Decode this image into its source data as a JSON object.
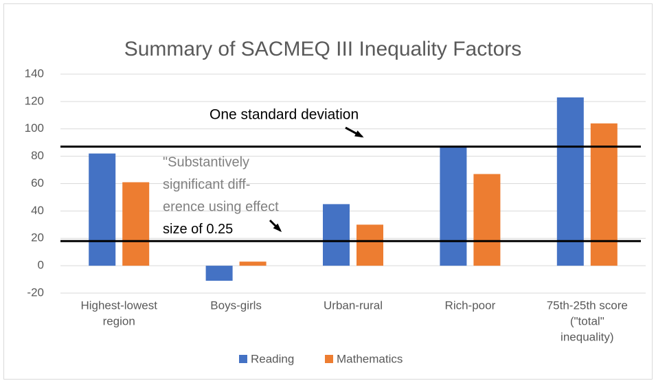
{
  "chart_data": {
    "type": "bar",
    "title": "Summary of SACMEQ III Inequality Factors",
    "categories": [
      [
        "Highest-lowest",
        "region"
      ],
      [
        "Boys-girls"
      ],
      [
        "Urban-rural"
      ],
      [
        "Rich-poor"
      ],
      [
        "75th-25th score",
        "(\"total\"",
        "inequality)"
      ]
    ],
    "series": [
      {
        "name": "Reading",
        "color": "#4472c4",
        "values": [
          82,
          -11,
          45,
          87,
          123
        ]
      },
      {
        "name": "Mathematics",
        "color": "#ed7d31",
        "values": [
          61,
          3,
          30,
          67,
          104
        ]
      }
    ],
    "ylim": [
      -20,
      140
    ],
    "yticks": [
      -20,
      0,
      20,
      40,
      60,
      80,
      100,
      120,
      140
    ],
    "grid": true,
    "legend": "bottom",
    "reference_lines": [
      {
        "value": 87,
        "label": "One standard deviation"
      },
      {
        "value": 18,
        "label": [
          "\"Substantively",
          "significant diff-",
          "erence using effect",
          "size of 0.25"
        ]
      }
    ]
  }
}
